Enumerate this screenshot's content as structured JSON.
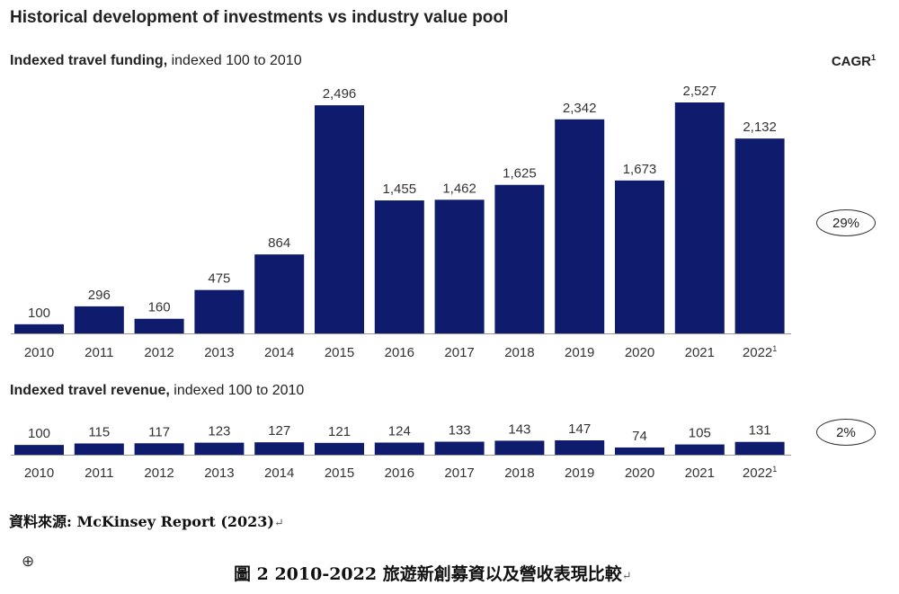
{
  "title": "Historical development of investments vs industry value pool",
  "cagr_header": {
    "label": "CAGR",
    "footnote": "1"
  },
  "chart_data": [
    {
      "type": "bar",
      "title_bold": "Indexed travel funding,",
      "title_rest": " indexed 100 to 2010",
      "categories": [
        "2010",
        "2011",
        "2012",
        "2013",
        "2014",
        "2015",
        "2016",
        "2017",
        "2018",
        "2019",
        "2020",
        "2021",
        "2022"
      ],
      "category_footnotes": [
        "",
        "",
        "",
        "",
        "",
        "",
        "",
        "",
        "",
        "",
        "",
        "",
        "1"
      ],
      "values": [
        100,
        296,
        160,
        475,
        864,
        2496,
        1455,
        1462,
        1625,
        2342,
        1673,
        2527,
        2132
      ],
      "value_labels": [
        "100",
        "296",
        "160",
        "475",
        "864",
        "2,496",
        "1,455",
        "1,462",
        "1,625",
        "2,342",
        "1,673",
        "2,527",
        "2,132"
      ],
      "ylim": [
        0,
        2527
      ],
      "cagr": "29%",
      "bar_color": "#0f1c6e"
    },
    {
      "type": "bar",
      "title_bold": "Indexed travel revenue,",
      "title_rest": " indexed 100 to 2010",
      "categories": [
        "2010",
        "2011",
        "2012",
        "2013",
        "2014",
        "2015",
        "2016",
        "2017",
        "2018",
        "2019",
        "2020",
        "2021",
        "2022"
      ],
      "category_footnotes": [
        "",
        "",
        "",
        "",
        "",
        "",
        "",
        "",
        "",
        "",
        "",
        "",
        "1"
      ],
      "values": [
        100,
        115,
        117,
        123,
        127,
        121,
        124,
        133,
        143,
        147,
        74,
        105,
        131
      ],
      "value_labels": [
        "100",
        "115",
        "117",
        "123",
        "127",
        "121",
        "124",
        "133",
        "143",
        "147",
        "74",
        "105",
        "131"
      ],
      "ylim": [
        0,
        147
      ],
      "cagr": "2%",
      "bar_color": "#0f1c6e"
    }
  ],
  "source": {
    "label": "資料來源: McKinsey Report (2023)",
    "mark": "↵"
  },
  "anchor_icon": "anchor-cross-icon",
  "caption": {
    "text": "圖 2 2010-2022 旅遊新創募資以及營收表現比較",
    "mark": "↵"
  }
}
